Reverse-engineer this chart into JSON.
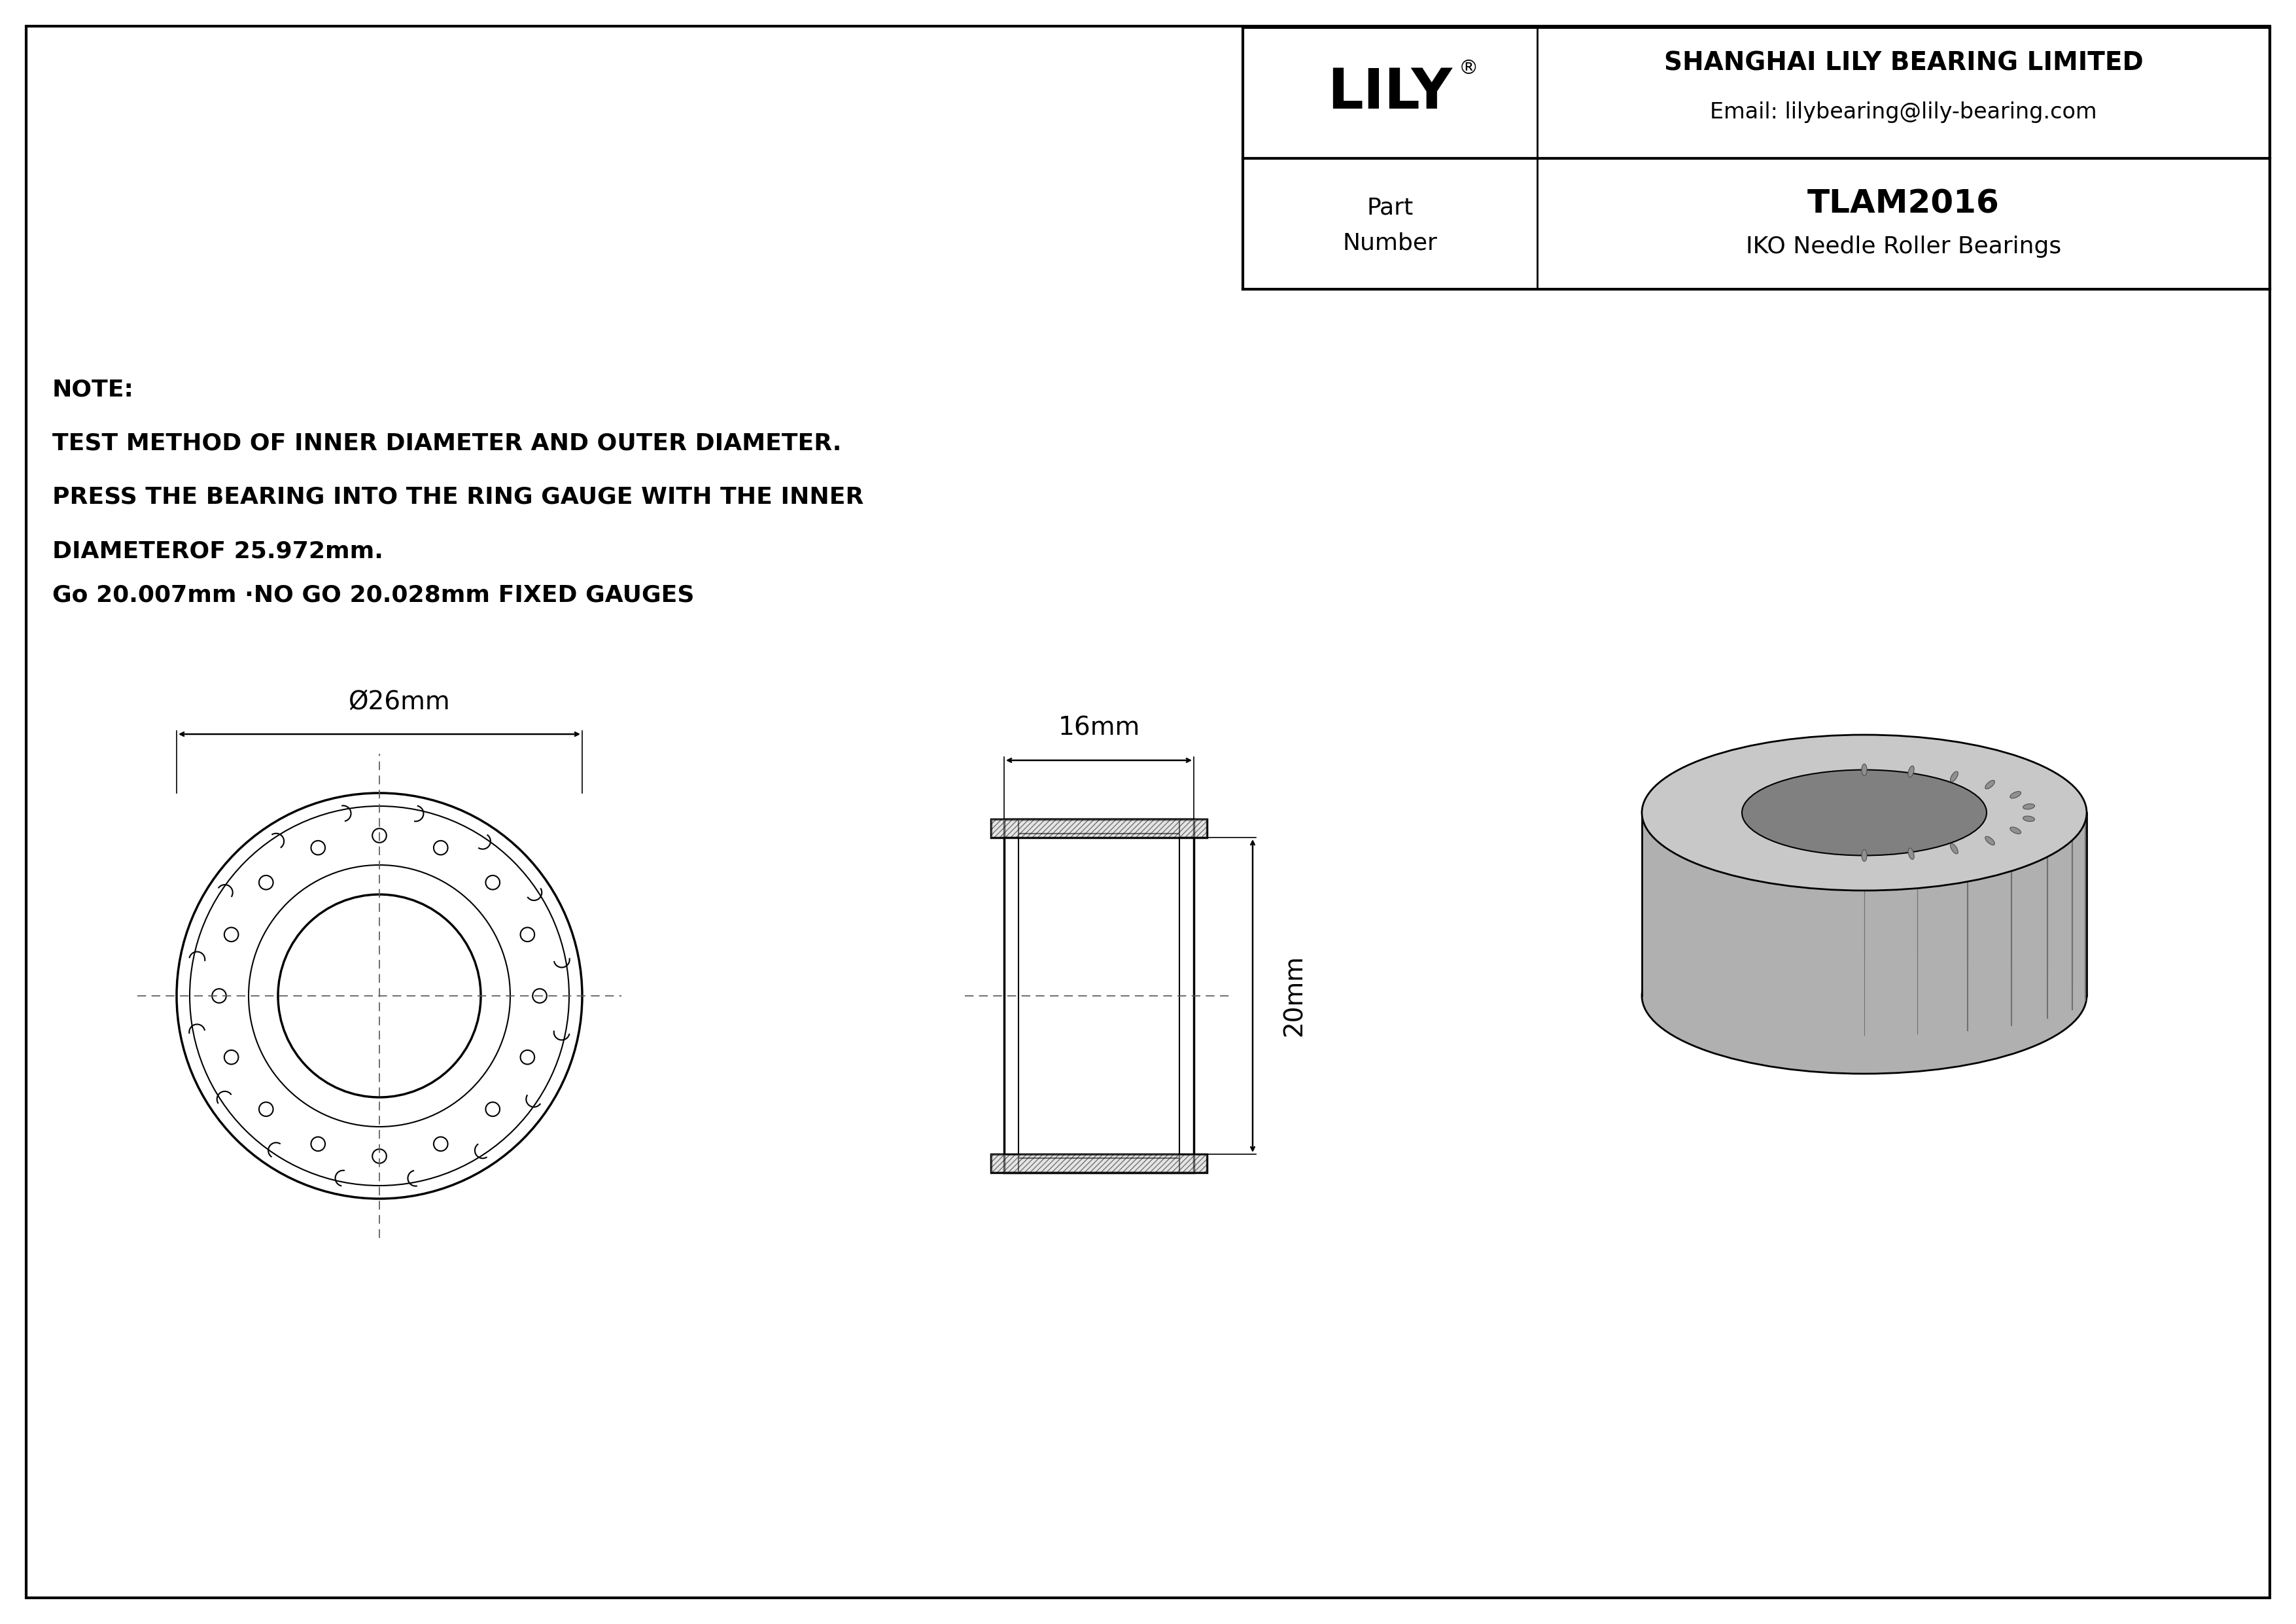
{
  "bg_color": "#ffffff",
  "line_color": "#000000",
  "border_color": "#000000",
  "title_font_size": 28,
  "note_font_size": 22,
  "label_font_size": 24,
  "company": "SHANGHAI LILY BEARING LIMITED",
  "email": "Email: lilybearing@lily-bearing.com",
  "part_label": "Part\nNumber",
  "part_number": "TLAM2016",
  "bearing_type": "IKO Needle Roller Bearings",
  "brand": "LILY",
  "note_line1": "NOTE:",
  "note_line2": "TEST METHOD OF INNER DIAMETER AND OUTER DIAMETER.",
  "note_line3": "PRESS THE BEARING INTO THE RING GAUGE WITH THE INNER",
  "note_line4": "DIAMETEROF 25.972mm.",
  "note_line5": "Go 20.007mm ·NO GO 20.028mm FIXED GAUGES",
  "dim_diameter": "Ø26mm",
  "dim_width": "16mm",
  "dim_height": "20mm",
  "gray_color": "#a0a0a0"
}
